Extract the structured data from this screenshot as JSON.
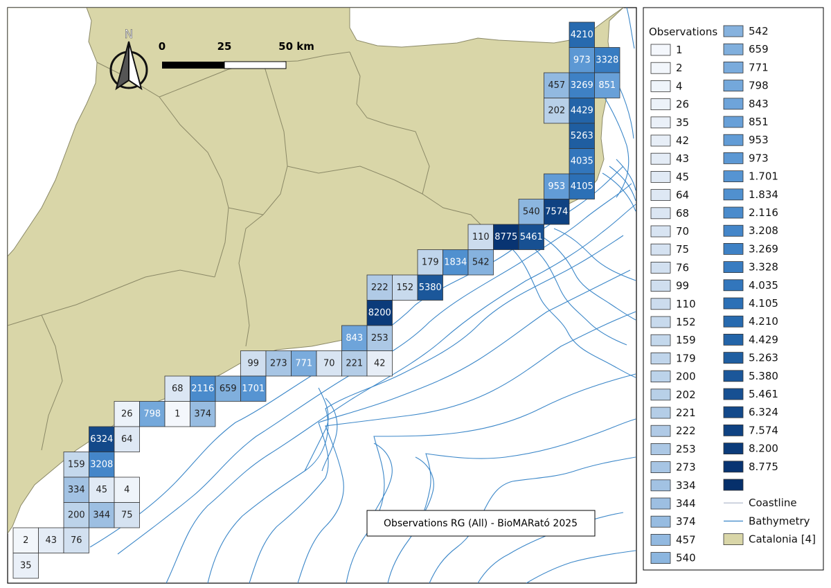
{
  "map": {
    "title_box": "Observations RG (All) - BioMARató 2025",
    "north_label": "N",
    "scalebar": {
      "labels": [
        "0",
        "25",
        "50 km"
      ]
    },
    "colors": {
      "land": "#d9d6a8",
      "land_border": "#8a8866",
      "bathy": "#3a86c8",
      "frame": "#000000"
    },
    "grid_cells": [
      {
        "value": "4210"
      },
      {
        "value": "973"
      },
      {
        "value": "3328"
      },
      {
        "value": "457"
      },
      {
        "value": "3269"
      },
      {
        "value": "851"
      },
      {
        "value": "202"
      },
      {
        "value": "4429"
      },
      {
        "value": "5263"
      },
      {
        "value": "4035"
      },
      {
        "value": "953"
      },
      {
        "value": "4105"
      },
      {
        "value": "540"
      },
      {
        "value": "7574"
      },
      {
        "value": "110"
      },
      {
        "value": "8775"
      },
      {
        "value": "5461"
      },
      {
        "value": "179"
      },
      {
        "value": "1834"
      },
      {
        "value": "542"
      },
      {
        "value": "222"
      },
      {
        "value": "152"
      },
      {
        "value": "5380"
      },
      {
        "value": "8200"
      },
      {
        "value": "843"
      },
      {
        "value": "253"
      },
      {
        "value": "99"
      },
      {
        "value": "273"
      },
      {
        "value": "771"
      },
      {
        "value": "70"
      },
      {
        "value": "221"
      },
      {
        "value": "42"
      },
      {
        "value": "68"
      },
      {
        "value": "2116"
      },
      {
        "value": "659"
      },
      {
        "value": "1701"
      },
      {
        "value": "26"
      },
      {
        "value": "798"
      },
      {
        "value": "1"
      },
      {
        "value": "374"
      },
      {
        "value": "6324"
      },
      {
        "value": "64"
      },
      {
        "value": "159"
      },
      {
        "value": "3208"
      },
      {
        "value": "334"
      },
      {
        "value": "45"
      },
      {
        "value": "4"
      },
      {
        "value": "200"
      },
      {
        "value": "344"
      },
      {
        "value": "75"
      },
      {
        "value": "2"
      },
      {
        "value": "43"
      },
      {
        "value": "76"
      },
      {
        "value": "35"
      }
    ]
  },
  "legend": {
    "heading": "Observations",
    "classes": [
      {
        "label": "1",
        "color": "#f4f7fc"
      },
      {
        "label": "2",
        "color": "#f2f6fb"
      },
      {
        "label": "4",
        "color": "#eff4fa"
      },
      {
        "label": "26",
        "color": "#ecf2f9"
      },
      {
        "label": "35",
        "color": "#eaf0f8"
      },
      {
        "label": "42",
        "color": "#e7eef7"
      },
      {
        "label": "43",
        "color": "#e4ecf6"
      },
      {
        "label": "45",
        "color": "#e1eaf5"
      },
      {
        "label": "64",
        "color": "#dee8f4"
      },
      {
        "label": "68",
        "color": "#dbe6f3"
      },
      {
        "label": "70",
        "color": "#d8e4f2"
      },
      {
        "label": "75",
        "color": "#d5e2f1"
      },
      {
        "label": "76",
        "color": "#d2e0f0"
      },
      {
        "label": "99",
        "color": "#cfdeef"
      },
      {
        "label": "110",
        "color": "#ccdcee"
      },
      {
        "label": "152",
        "color": "#c8daed"
      },
      {
        "label": "159",
        "color": "#c4d8ec"
      },
      {
        "label": "179",
        "color": "#c0d5eb"
      },
      {
        "label": "200",
        "color": "#bcd3ea"
      },
      {
        "label": "202",
        "color": "#b8d0e8"
      },
      {
        "label": "221",
        "color": "#b4cde7"
      },
      {
        "label": "222",
        "color": "#b0cae6"
      },
      {
        "label": "253",
        "color": "#acc8e5"
      },
      {
        "label": "273",
        "color": "#a7c5e4"
      },
      {
        "label": "334",
        "color": "#a2c2e3"
      },
      {
        "label": "344",
        "color": "#9dbfe2"
      },
      {
        "label": "374",
        "color": "#97bce1"
      },
      {
        "label": "457",
        "color": "#92b9e0"
      },
      {
        "label": "540",
        "color": "#8cb6df"
      },
      {
        "label": "542",
        "color": "#86b2de"
      },
      {
        "label": "659",
        "color": "#80afdd"
      },
      {
        "label": "771",
        "color": "#7aabdc"
      },
      {
        "label": "798",
        "color": "#74a8db"
      },
      {
        "label": "843",
        "color": "#6ea4da"
      },
      {
        "label": "851",
        "color": "#68a0d8"
      },
      {
        "label": "953",
        "color": "#629cd6"
      },
      {
        "label": "973",
        "color": "#5c98d4"
      },
      {
        "label": "1.701",
        "color": "#5694d2"
      },
      {
        "label": "1.834",
        "color": "#5090cf"
      },
      {
        "label": "2.116",
        "color": "#4a8bcc"
      },
      {
        "label": "3.208",
        "color": "#4486c9"
      },
      {
        "label": "3.269",
        "color": "#3e81c5"
      },
      {
        "label": "3.328",
        "color": "#387cc1"
      },
      {
        "label": "4.035",
        "color": "#3276bc"
      },
      {
        "label": "4.105",
        "color": "#2c70b6"
      },
      {
        "label": "4.210",
        "color": "#276aaf"
      },
      {
        "label": "4.429",
        "color": "#2364a8"
      },
      {
        "label": "5.263",
        "color": "#1f5ea1"
      },
      {
        "label": "5.380",
        "color": "#1b579a"
      },
      {
        "label": "5.461",
        "color": "#175092"
      },
      {
        "label": "6.324",
        "color": "#13498a"
      },
      {
        "label": "7.574",
        "color": "#0f4282"
      },
      {
        "label": "8.200",
        "color": "#0b3b7a"
      },
      {
        "label": "8.775",
        "color": "#083472"
      },
      {
        "label": "",
        "color": "#06306b"
      }
    ],
    "layers": [
      {
        "label": "Coastline",
        "color": "#aab4c8"
      },
      {
        "label": "Bathymetry",
        "color": "#3a86c8"
      },
      {
        "label": "Catalonia [4]",
        "color": "#d9d6a8"
      }
    ]
  }
}
